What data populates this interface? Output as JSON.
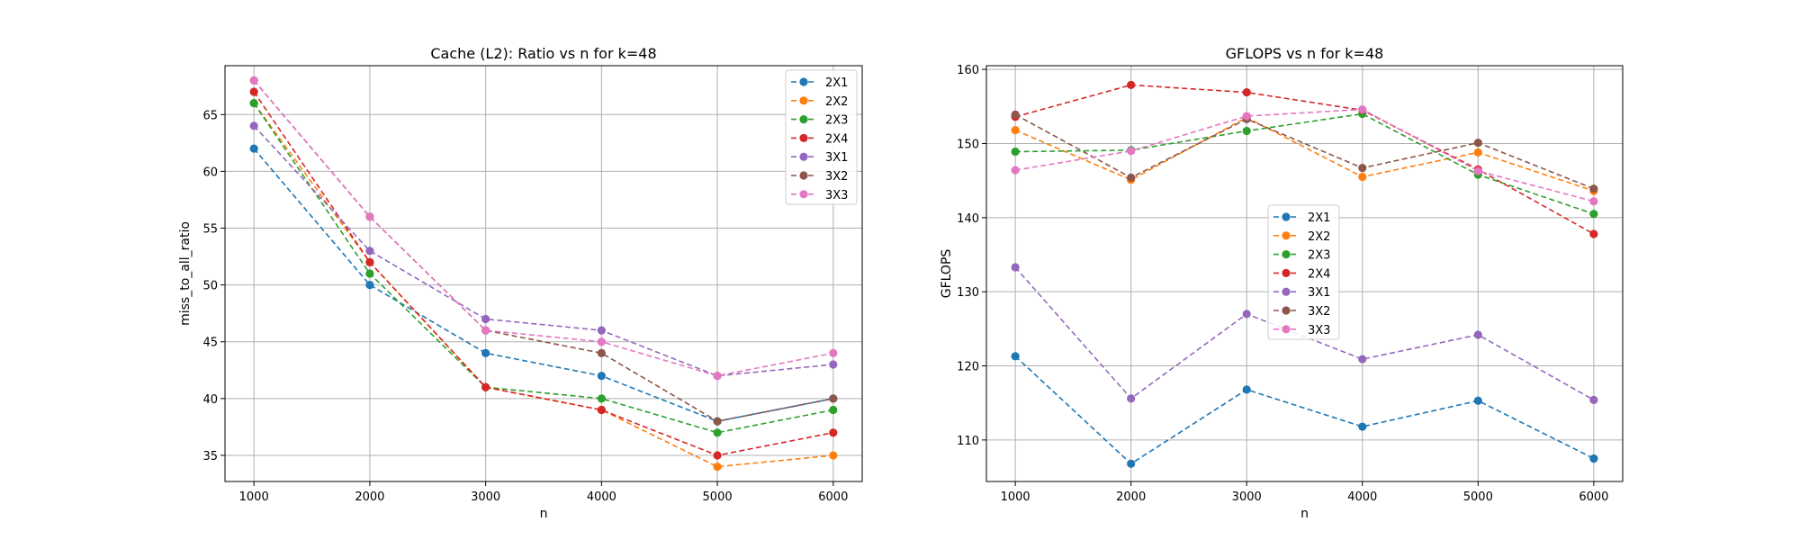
{
  "chart_data": [
    {
      "type": "line",
      "title": "Cache (L2): Ratio vs n for k=48",
      "xlabel": "n",
      "ylabel": "miss_to_all_ratio",
      "x": [
        1000,
        2000,
        3000,
        4000,
        5000,
        6000
      ],
      "xticks": [
        "1000",
        "2000",
        "3000",
        "4000",
        "5000",
        "6000"
      ],
      "yticks": [
        "35",
        "40",
        "45",
        "50",
        "55",
        "60",
        "65"
      ],
      "xlim": [
        750,
        6250
      ],
      "ylim": [
        32.7,
        69.3
      ],
      "grid": true,
      "legend": "upper-right",
      "series": [
        {
          "name": "2X1",
          "color": "#1f77b4",
          "values": [
            62,
            50,
            44,
            42,
            38,
            40
          ]
        },
        {
          "name": "2X2",
          "color": "#ff7f0e",
          "values": [
            66,
            52,
            41,
            39,
            34,
            35
          ]
        },
        {
          "name": "2X3",
          "color": "#2ca02c",
          "values": [
            66,
            51,
            41,
            40,
            37,
            39
          ]
        },
        {
          "name": "2X4",
          "color": "#d62728",
          "values": [
            67,
            52,
            41,
            39,
            35,
            37
          ]
        },
        {
          "name": "3X1",
          "color": "#9467bd",
          "values": [
            64,
            53,
            47,
            46,
            42,
            43
          ]
        },
        {
          "name": "3X2",
          "color": "#8c564b",
          "values": [
            68,
            56,
            46,
            44,
            38,
            40
          ]
        },
        {
          "name": "3X3",
          "color": "#e377c2",
          "values": [
            68,
            56,
            46,
            45,
            42,
            44
          ]
        }
      ]
    },
    {
      "type": "line",
      "title": "GFLOPS vs n for k=48",
      "xlabel": "n",
      "ylabel": "GFLOPS",
      "x": [
        1000,
        2000,
        3000,
        4000,
        5000,
        6000
      ],
      "xticks": [
        "1000",
        "2000",
        "3000",
        "4000",
        "5000",
        "6000"
      ],
      "yticks": [
        "110",
        "120",
        "130",
        "140",
        "150",
        "160"
      ],
      "xlim": [
        750,
        6250
      ],
      "ylim": [
        104.4,
        160.5
      ],
      "grid": true,
      "legend": "center",
      "series": [
        {
          "name": "2X1",
          "color": "#1f77b4",
          "values": [
            121.3,
            106.8,
            116.8,
            111.8,
            115.3,
            107.5
          ]
        },
        {
          "name": "2X2",
          "color": "#ff7f0e",
          "values": [
            151.8,
            145.1,
            153.5,
            145.5,
            148.8,
            143.6
          ]
        },
        {
          "name": "2X3",
          "color": "#2ca02c",
          "values": [
            148.9,
            149.1,
            151.7,
            154.0,
            145.8,
            140.5
          ]
        },
        {
          "name": "2X4",
          "color": "#d62728",
          "values": [
            153.6,
            157.9,
            156.9,
            154.5,
            146.5,
            137.8
          ]
        },
        {
          "name": "3X1",
          "color": "#9467bd",
          "values": [
            133.3,
            115.6,
            127.0,
            120.9,
            124.2,
            115.4
          ]
        },
        {
          "name": "3X2",
          "color": "#8c564b",
          "values": [
            153.9,
            145.4,
            153.3,
            146.7,
            150.1,
            143.9
          ]
        },
        {
          "name": "3X3",
          "color": "#e377c2",
          "values": [
            146.4,
            149.0,
            153.7,
            154.6,
            146.3,
            142.2
          ]
        }
      ]
    }
  ]
}
